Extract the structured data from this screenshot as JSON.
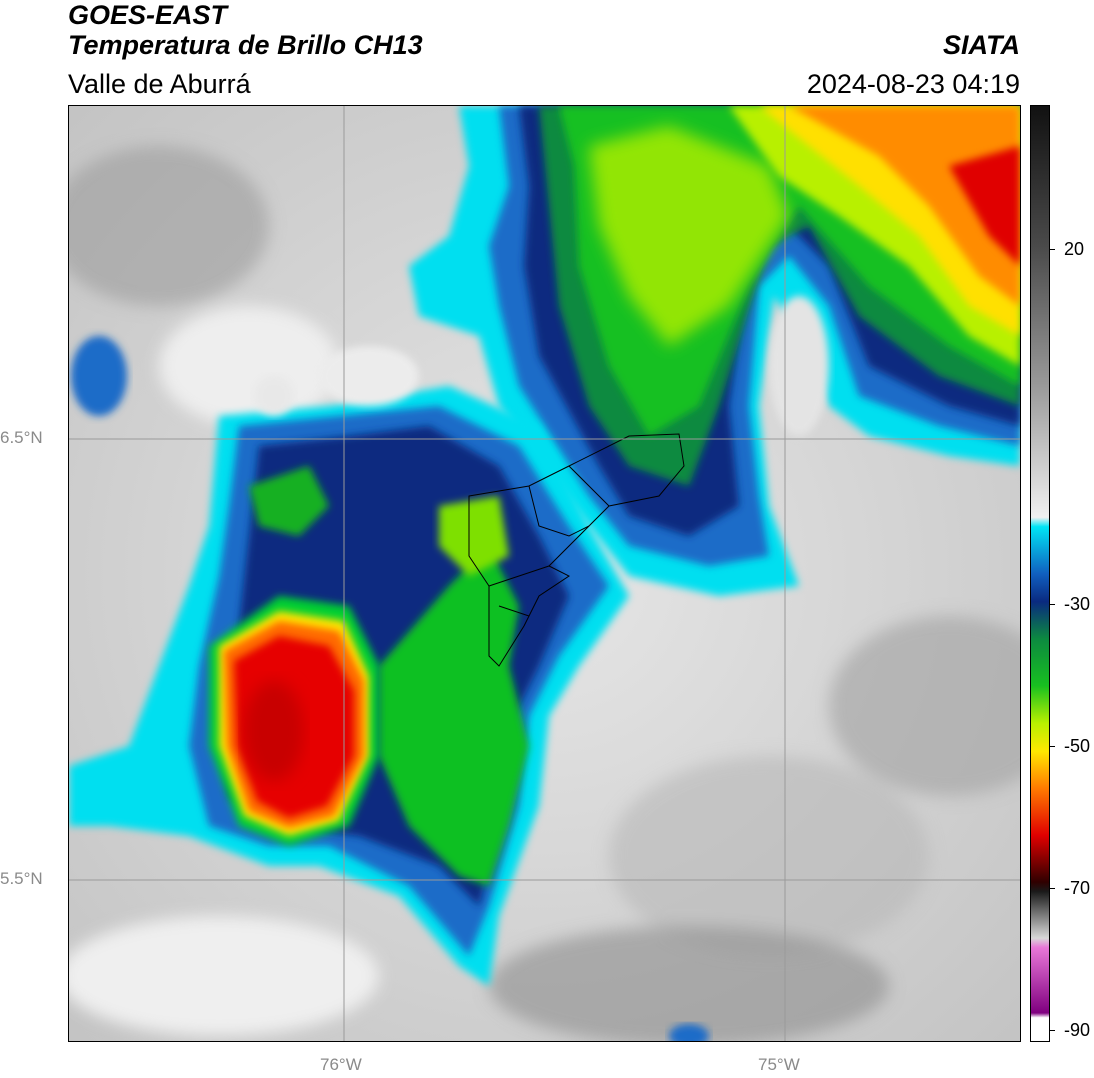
{
  "header": {
    "satellite": "GOES-EAST",
    "product": "Temperatura de Brillo CH13",
    "region": "Valle de Aburrá",
    "agency": "SIATA",
    "timestamp": "2024-08-23 04:19"
  },
  "map": {
    "lat_labels": [
      "6.5°N",
      "5.5°N"
    ],
    "lon_labels": [
      "76°W",
      "75°W"
    ],
    "graticule_color": "#9a9a9a"
  },
  "colorbar": {
    "unit_hint": "",
    "ticks": [
      "20",
      "-30",
      "-50",
      "-70",
      "-90"
    ],
    "colors": {
      "warm_gray_top": "#111111",
      "warm_gray_mid": "#808080",
      "warm_gray_low": "#f2f2f2",
      "cyan": "#00e5f5",
      "blue": "#1060c0",
      "navy": "#0a2a80",
      "green": "#10c020",
      "yellow_green": "#b8f000",
      "yellow": "#ffe800",
      "orange": "#ff7a00",
      "red": "#e00000",
      "dark_red": "#300000",
      "magenta": "#e060d0",
      "purple": "#800080"
    }
  }
}
